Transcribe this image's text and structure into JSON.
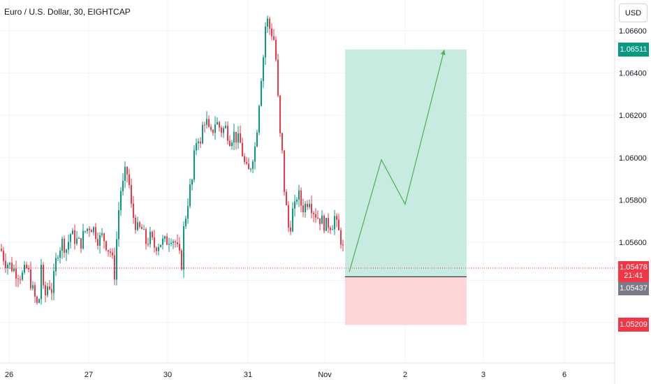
{
  "header": {
    "title": "Euro / U.S. Dollar, 30, EIGHTCAP"
  },
  "currency_button": "USD",
  "price_axis": {
    "ticks": [
      "1.06600",
      "1.06400",
      "1.06200",
      "1.06000",
      "1.05800",
      "1.05600"
    ]
  },
  "time_axis": {
    "ticks": [
      "26",
      "27",
      "30",
      "31",
      "Nov",
      "2",
      "3",
      "6"
    ]
  },
  "labels": {
    "target": {
      "text": "1.06511",
      "color": "#089981"
    },
    "current": {
      "text": "1.05478",
      "timer": "21:41",
      "color": "#f23645"
    },
    "entry": {
      "text": "1.05437",
      "color": "#787b86"
    },
    "stop": {
      "text": "1.05209",
      "color": "#f23645"
    }
  },
  "colors": {
    "up": "#089981",
    "down": "#f23645",
    "profit_zone": "#c8ebe1",
    "loss_zone": "#fdd5d6",
    "projection": "#4caf50",
    "grid": "#f0f3fa"
  },
  "chart_data": {
    "type": "candlestick",
    "title": "Euro / U.S. Dollar, 30, EIGHTCAP",
    "yrange": [
      1.0515,
      1.0675
    ],
    "x_ticks": [
      "26",
      "27",
      "30",
      "31",
      "Nov",
      "2",
      "3",
      "6"
    ],
    "price_path": [
      [
        0,
        1.0557
      ],
      [
        6,
        1.0551
      ],
      [
        14,
        1.0549
      ],
      [
        22,
        1.0546
      ],
      [
        30,
        1.0544
      ],
      [
        38,
        1.0548
      ],
      [
        46,
        1.0537
      ],
      [
        54,
        1.0528
      ],
      [
        58,
        1.055
      ],
      [
        62,
        1.0532
      ],
      [
        68,
        1.0541
      ],
      [
        74,
        1.0537
      ],
      [
        78,
        1.0549
      ],
      [
        82,
        1.0556
      ],
      [
        88,
        1.056
      ],
      [
        94,
        1.0557
      ],
      [
        100,
        1.0564
      ],
      [
        108,
        1.0561
      ],
      [
        114,
        1.0559
      ],
      [
        120,
        1.0565
      ],
      [
        128,
        1.0568
      ],
      [
        134,
        1.0566
      ],
      [
        140,
        1.0561
      ],
      [
        146,
        1.0563
      ],
      [
        154,
        1.0557
      ],
      [
        158,
        1.0555
      ],
      [
        163,
        1.0545
      ],
      [
        167,
        1.0567
      ],
      [
        171,
        1.0584
      ],
      [
        175,
        1.0587
      ],
      [
        179,
        1.0594
      ],
      [
        183,
        1.0591
      ],
      [
        186,
        1.0578
      ],
      [
        190,
        1.0572
      ],
      [
        196,
        1.0566
      ],
      [
        202,
        1.0566
      ],
      [
        208,
        1.056
      ],
      [
        214,
        1.0562
      ],
      [
        220,
        1.0558
      ],
      [
        228,
        1.056
      ],
      [
        236,
        1.056
      ],
      [
        244,
        1.0563
      ],
      [
        250,
        1.056
      ],
      [
        256,
        1.0553
      ],
      [
        259,
        1.055
      ],
      [
        262,
        1.0566
      ],
      [
        266,
        1.0575
      ],
      [
        270,
        1.0584
      ],
      [
        274,
        1.0589
      ],
      [
        278,
        1.0604
      ],
      [
        282,
        1.0612
      ],
      [
        286,
        1.0605
      ],
      [
        290,
        1.0618
      ],
      [
        294,
        1.0618
      ],
      [
        298,
        1.0612
      ],
      [
        302,
        1.061
      ],
      [
        306,
        1.0617
      ],
      [
        310,
        1.0616
      ],
      [
        316,
        1.0613
      ],
      [
        322,
        1.0614
      ],
      [
        328,
        1.0609
      ],
      [
        334,
        1.0611
      ],
      [
        340,
        1.0608
      ],
      [
        344,
        1.0606
      ],
      [
        348,
        1.0598
      ],
      [
        352,
        1.0594
      ],
      [
        356,
        1.0593
      ],
      [
        360,
        1.06
      ],
      [
        364,
        1.0605
      ],
      [
        368,
        1.0618
      ],
      [
        372,
        1.0636
      ],
      [
        376,
        1.0648
      ],
      [
        380,
        1.0667
      ],
      [
        384,
        1.0662
      ],
      [
        388,
        1.0659
      ],
      [
        392,
        1.0655
      ],
      [
        395,
        1.0642
      ],
      [
        398,
        1.062
      ],
      [
        401,
        1.0605
      ],
      [
        404,
        1.06
      ],
      [
        407,
        1.0578
      ],
      [
        410,
        1.0575
      ],
      [
        413,
        1.0563
      ],
      [
        417,
        1.0574
      ],
      [
        421,
        1.0576
      ],
      [
        425,
        1.0584
      ],
      [
        430,
        1.0578
      ],
      [
        434,
        1.0576
      ],
      [
        438,
        1.0579
      ],
      [
        442,
        1.0581
      ],
      [
        446,
        1.0576
      ],
      [
        450,
        1.0574
      ],
      [
        454,
        1.0572
      ],
      [
        458,
        1.0571
      ],
      [
        462,
        1.0569
      ],
      [
        466,
        1.0568
      ],
      [
        470,
        1.0569
      ],
      [
        474,
        1.0568
      ],
      [
        478,
        1.0572
      ],
      [
        482,
        1.0566
      ],
      [
        486,
        1.0563
      ],
      [
        490,
        1.0557
      ],
      [
        494,
        1.0548
      ]
    ],
    "position": {
      "entry": 1.05437,
      "target": 1.06511,
      "stop": 1.05209,
      "current": 1.05478
    },
    "projection_path": [
      [
        500,
        1.0546
      ],
      [
        546,
        1.0599
      ],
      [
        580,
        1.0578
      ],
      [
        636,
        1.0651
      ]
    ]
  }
}
